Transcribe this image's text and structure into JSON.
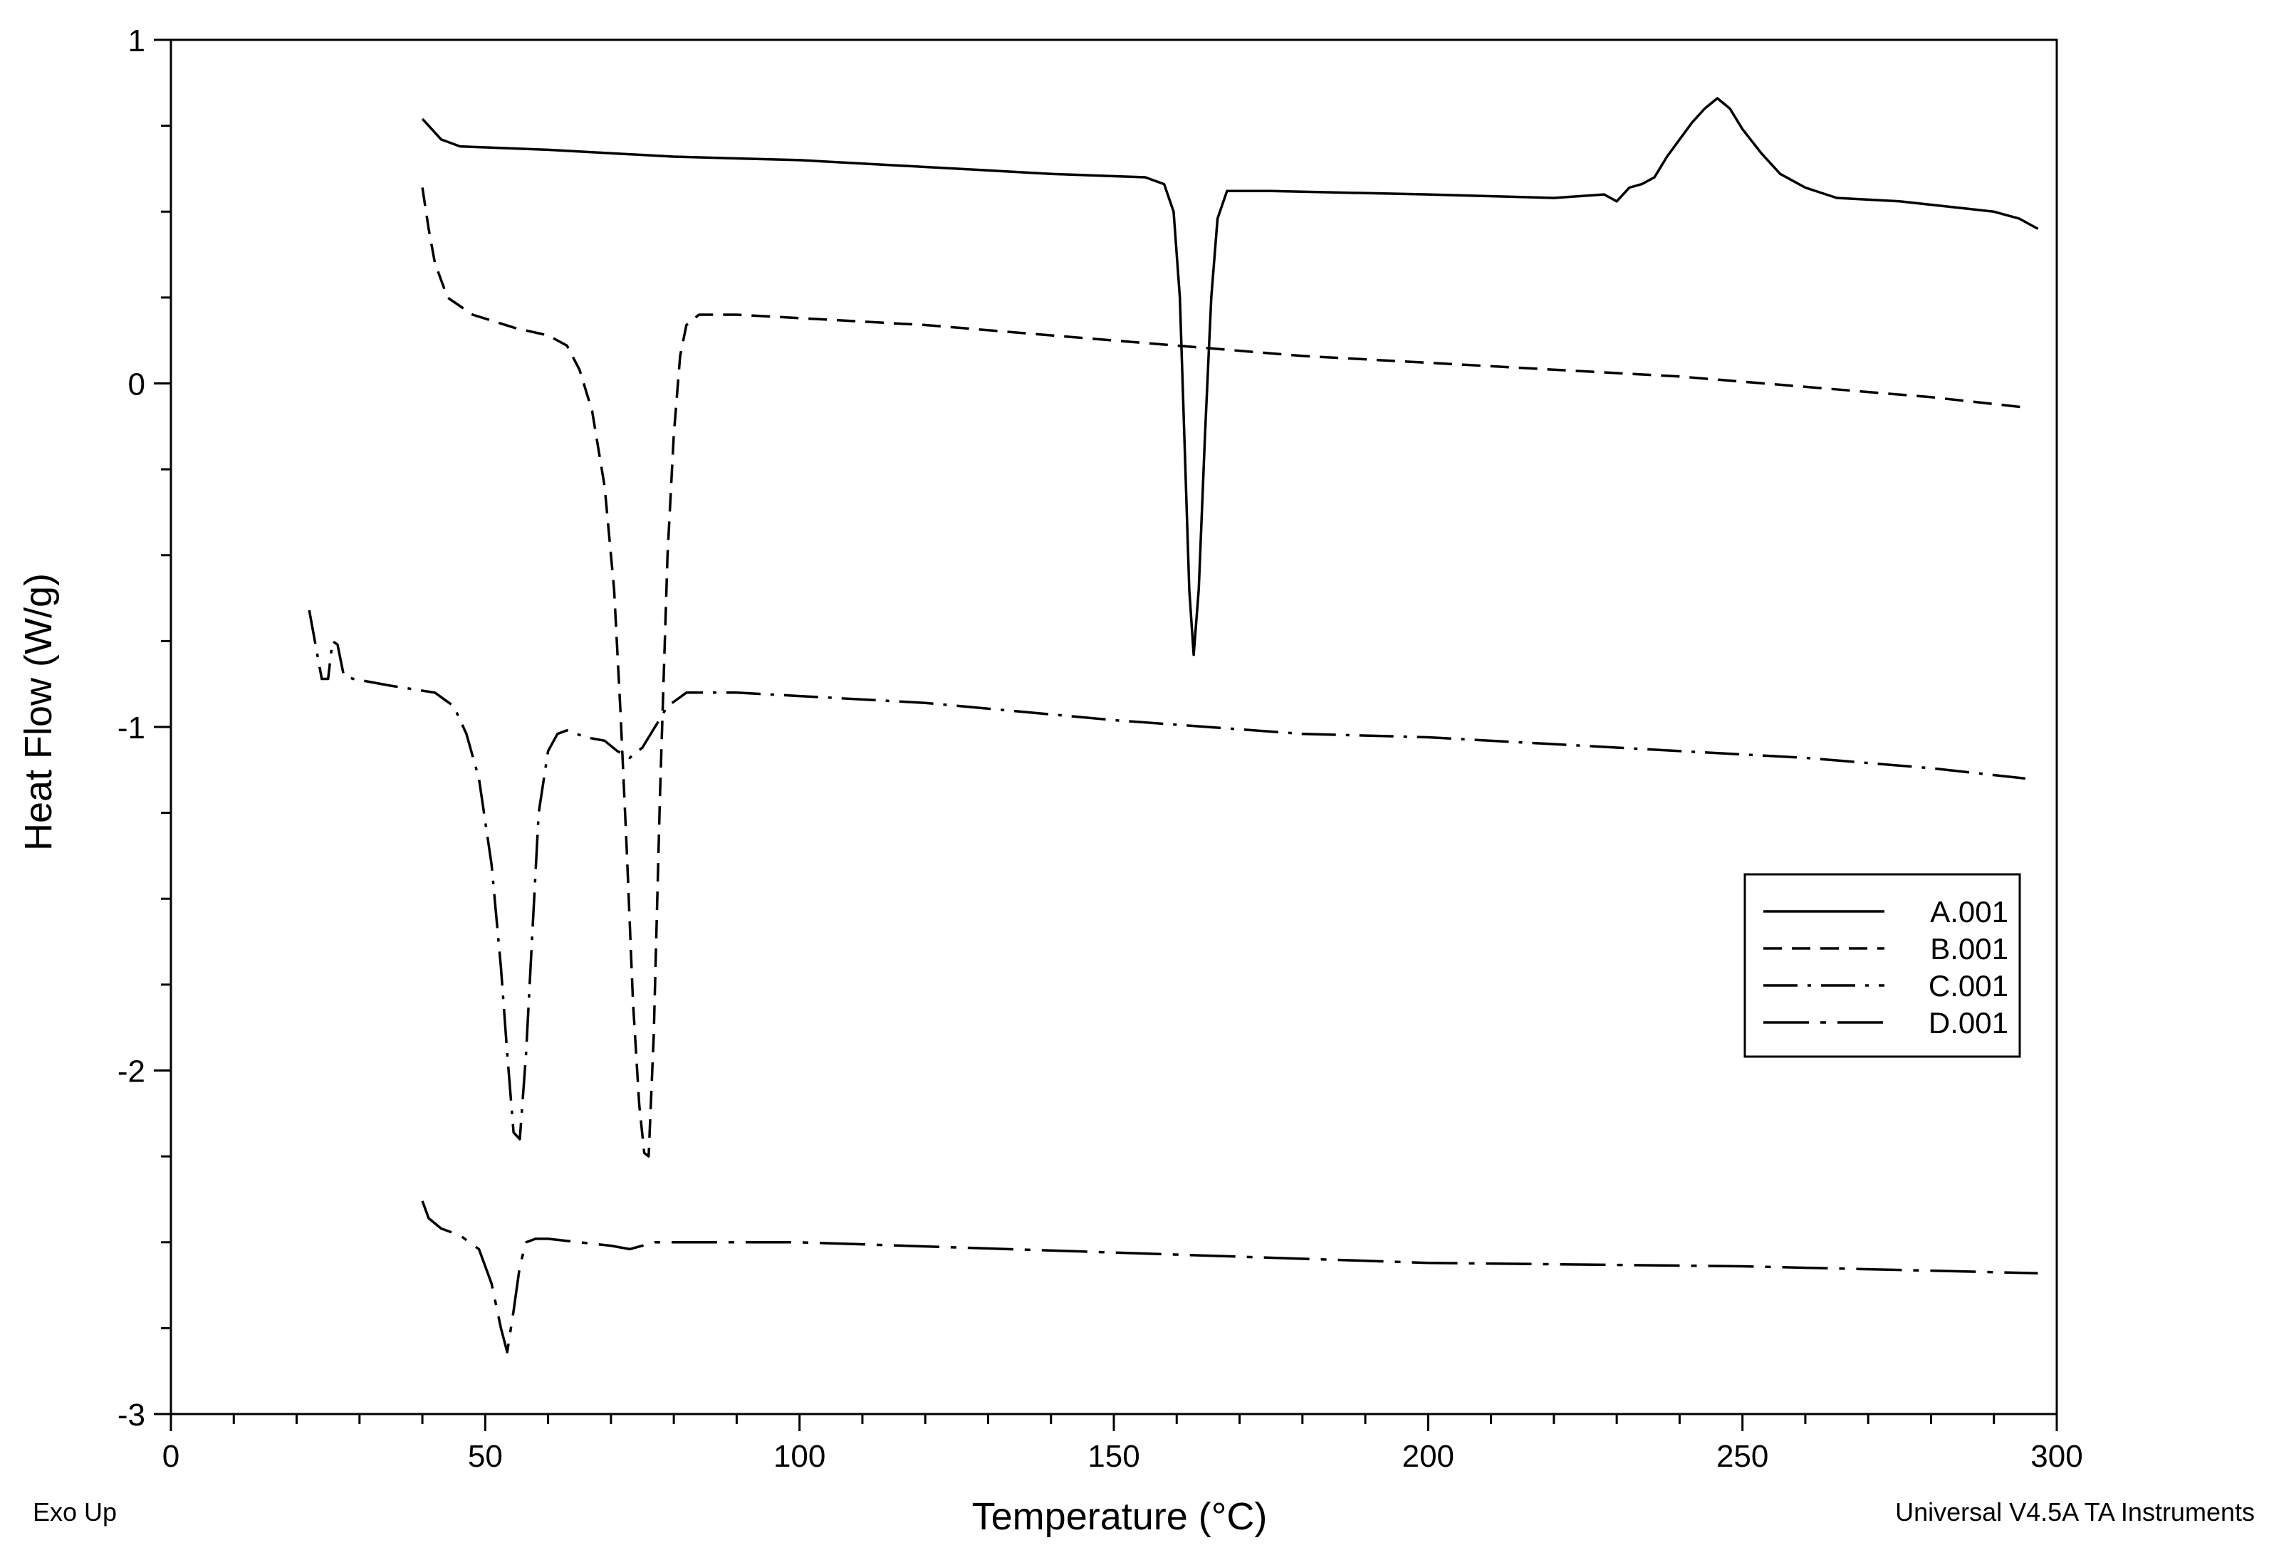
{
  "chart_data": {
    "type": "line",
    "xlabel": "Temperature (°C)",
    "ylabel": "Heat Flow (W/g)",
    "xlim": [
      0,
      300
    ],
    "ylim": [
      -3,
      1
    ],
    "x_ticks": [
      "0",
      "50",
      "100",
      "150",
      "200",
      "250",
      "300"
    ],
    "y_ticks": [
      "1",
      "0",
      "-1",
      "-2",
      "-3"
    ],
    "grid": false,
    "legend_position": "lower-right",
    "series": [
      {
        "name": "A.001",
        "dash": "solid",
        "x": [
          40,
          41,
          43,
          46,
          60,
          80,
          100,
          120,
          140,
          155,
          158,
          159.5,
          160.5,
          161.3,
          162,
          162.7,
          163.5,
          164.5,
          165.5,
          166.5,
          168,
          175,
          200,
          220,
          228,
          230,
          232,
          234,
          236,
          238,
          240,
          242,
          244,
          246,
          248,
          250,
          253,
          256,
          260,
          265,
          275,
          285,
          290,
          294,
          297
        ],
        "y": [
          0.77,
          0.75,
          0.71,
          0.69,
          0.68,
          0.66,
          0.65,
          0.63,
          0.61,
          0.6,
          0.58,
          0.5,
          0.25,
          -0.2,
          -0.6,
          -0.79,
          -0.6,
          -0.15,
          0.25,
          0.48,
          0.56,
          0.56,
          0.55,
          0.54,
          0.55,
          0.53,
          0.57,
          0.58,
          0.6,
          0.66,
          0.71,
          0.76,
          0.8,
          0.83,
          0.8,
          0.74,
          0.67,
          0.61,
          0.57,
          0.54,
          0.53,
          0.51,
          0.5,
          0.48,
          0.45
        ]
      },
      {
        "name": "B.001",
        "dash": "dashed",
        "x": [
          40,
          41,
          42,
          44,
          48,
          55,
          60,
          63,
          65,
          67,
          69,
          70.5,
          71.5,
          72.5,
          73.5,
          74.5,
          75.3,
          76,
          76.8,
          77.8,
          79,
          80,
          81,
          82,
          84,
          90,
          100,
          120,
          140,
          160,
          180,
          200,
          220,
          240,
          260,
          280,
          295
        ],
        "y": [
          0.57,
          0.45,
          0.35,
          0.25,
          0.2,
          0.16,
          0.14,
          0.11,
          0.04,
          -0.08,
          -0.3,
          -0.6,
          -0.95,
          -1.35,
          -1.8,
          -2.1,
          -2.24,
          -2.25,
          -1.9,
          -1.2,
          -0.5,
          -0.15,
          0.08,
          0.17,
          0.2,
          0.2,
          0.19,
          0.17,
          0.14,
          0.11,
          0.08,
          0.06,
          0.04,
          0.02,
          -0.01,
          -0.04,
          -0.07
        ]
      },
      {
        "name": "C.001",
        "dash": "dash-dot",
        "x": [
          22,
          23,
          24,
          25,
          25.7,
          26.5,
          27.5,
          29,
          35,
          42,
          45,
          47,
          49,
          51,
          52.5,
          53.5,
          54.5,
          55.5,
          56.5,
          57.5,
          58.5,
          60,
          61.5,
          63,
          66,
          69,
          71,
          73,
          75,
          77,
          79,
          82,
          90,
          100,
          120,
          150,
          180,
          200,
          230,
          260,
          280,
          295
        ],
        "y": [
          -0.66,
          -0.76,
          -0.86,
          -0.86,
          -0.75,
          -0.76,
          -0.85,
          -0.86,
          -0.88,
          -0.9,
          -0.94,
          -1.02,
          -1.15,
          -1.4,
          -1.7,
          -1.95,
          -2.18,
          -2.2,
          -1.95,
          -1.6,
          -1.25,
          -1.07,
          -1.02,
          -1.01,
          -1.03,
          -1.04,
          -1.07,
          -1.09,
          -1.06,
          -1.0,
          -0.94,
          -0.9,
          -0.9,
          -0.91,
          -0.93,
          -0.98,
          -1.02,
          -1.03,
          -1.06,
          -1.09,
          -1.12,
          -1.15
        ]
      },
      {
        "name": "D.001",
        "dash": "long-dash-dot",
        "x": [
          40,
          41,
          43,
          46,
          49,
          51,
          52.5,
          53.5,
          54.5,
          55.5,
          56.5,
          58,
          60,
          65,
          70,
          73,
          75,
          77,
          80,
          100,
          150,
          200,
          250,
          297
        ],
        "y": [
          -2.38,
          -2.43,
          -2.46,
          -2.48,
          -2.52,
          -2.62,
          -2.75,
          -2.82,
          -2.7,
          -2.57,
          -2.5,
          -2.49,
          -2.49,
          -2.5,
          -2.51,
          -2.52,
          -2.51,
          -2.5,
          -2.5,
          -2.5,
          -2.53,
          -2.56,
          -2.57,
          -2.59
        ]
      }
    ],
    "annotations": [
      "Exo Up",
      "Universal V4.5A TA Instruments"
    ]
  }
}
